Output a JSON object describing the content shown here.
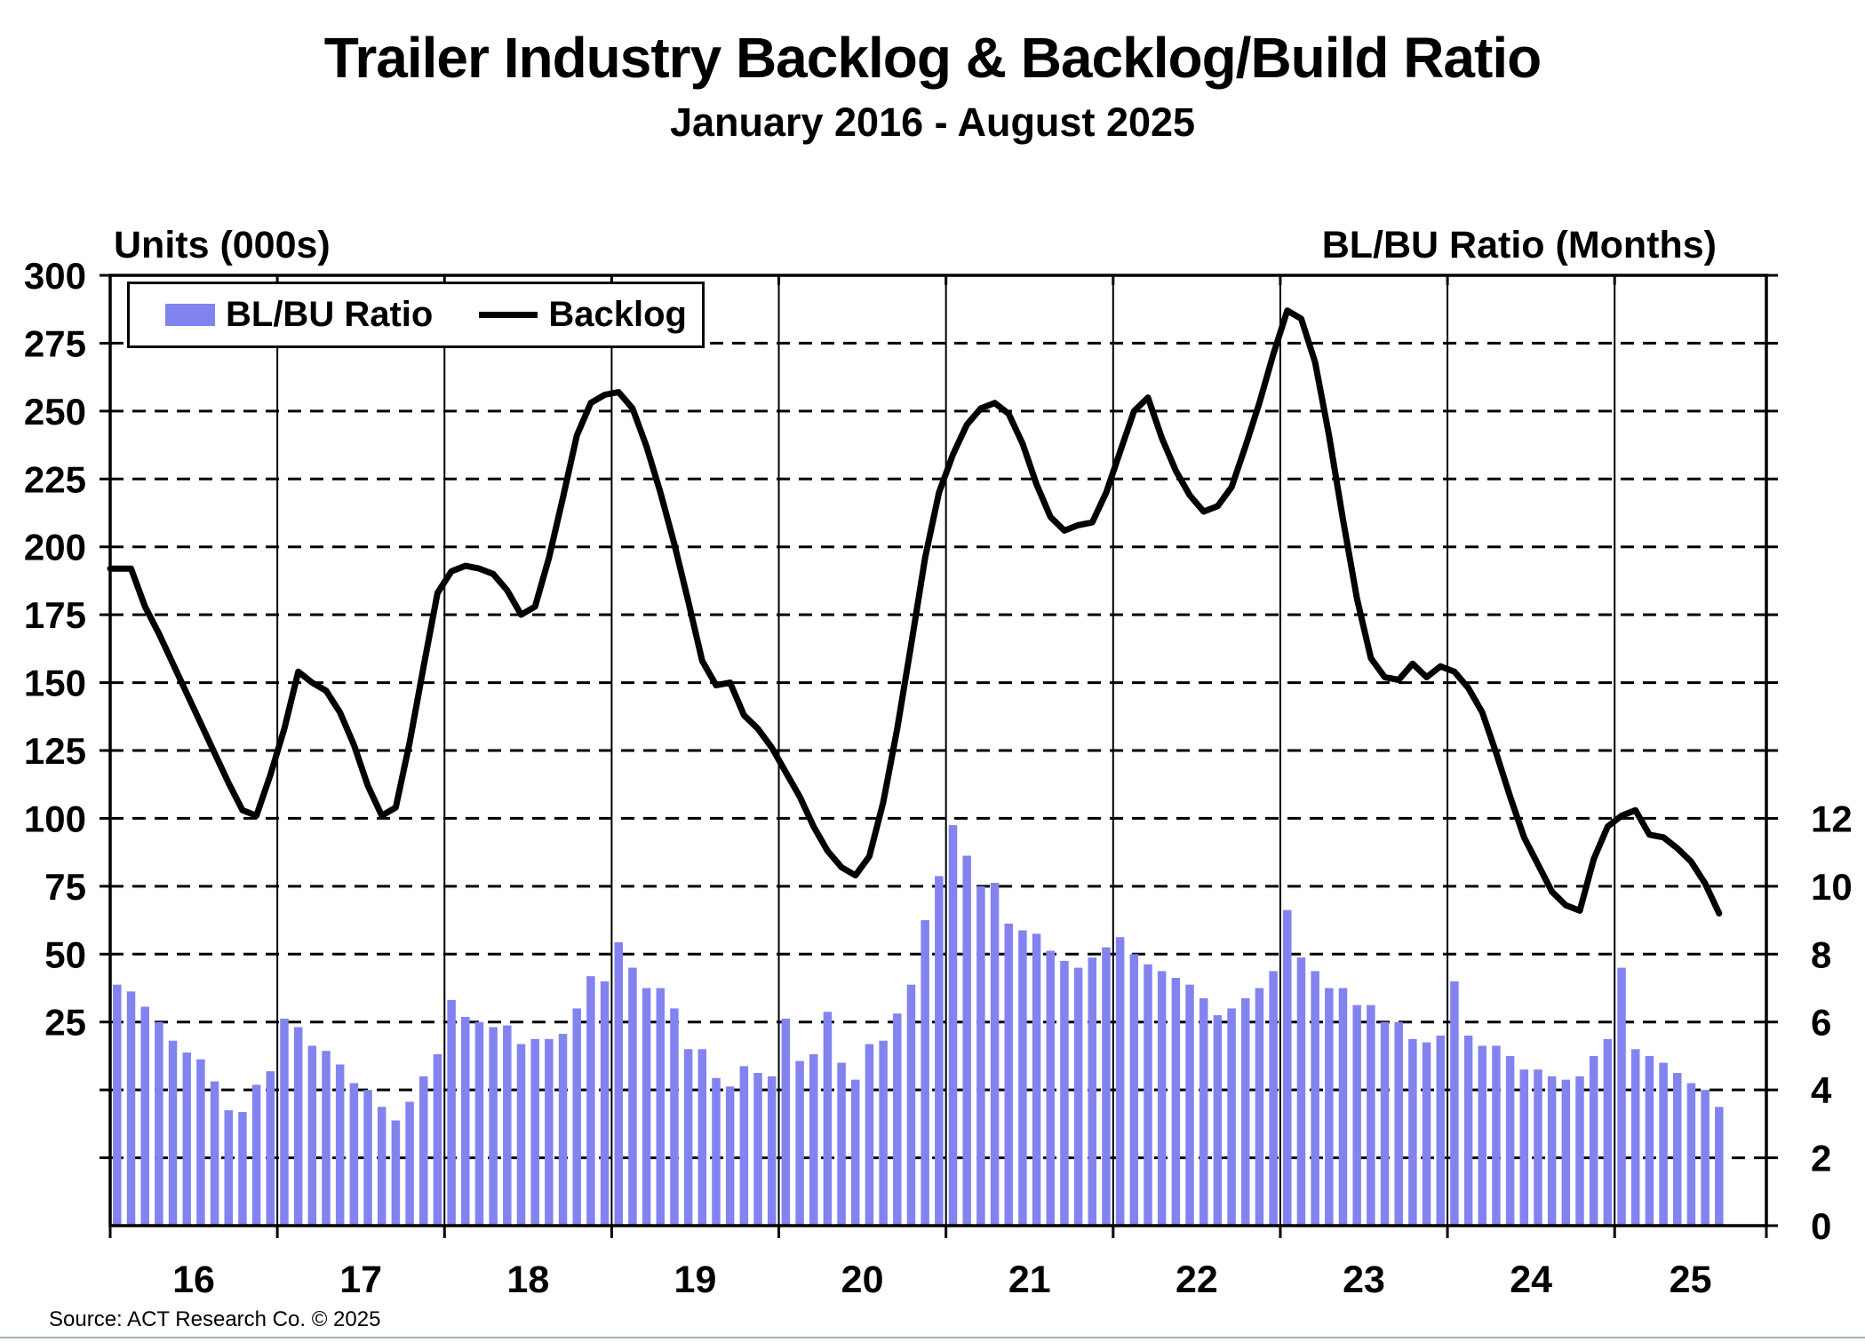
{
  "title": "Trailer Industry Backlog & Backlog/Build Ratio",
  "subtitle": "January 2016 - August 2025",
  "source": "Source: ACT Research Co. © 2025",
  "left_axis": {
    "title": "Units (000s)",
    "ticks": [
      300,
      275,
      250,
      225,
      200,
      175,
      150,
      125,
      100,
      75,
      50,
      25
    ]
  },
  "right_axis": {
    "title": "BL/BU Ratio (Months)",
    "ticks": [
      12,
      10,
      8,
      6,
      4,
      2,
      0
    ]
  },
  "x_axis": {
    "year_labels": [
      "16",
      "17",
      "18",
      "19",
      "20",
      "21",
      "22",
      "23",
      "24",
      "25"
    ]
  },
  "legend": {
    "items": [
      {
        "label": "BL/BU Ratio",
        "swatch": "bar"
      },
      {
        "label": "Backlog",
        "swatch": "line"
      }
    ]
  },
  "colors": {
    "bar": "#8383f0",
    "line": "#000000",
    "frame": "#000000",
    "grid": "#000000",
    "background": "#ffffff"
  },
  "chart_data": {
    "type": "bar",
    "title": "Trailer Industry Backlog & Backlog/Build Ratio",
    "x": {
      "start": "2016-01",
      "end": "2025-08",
      "interval": "month",
      "year_order": [
        "2016",
        "2017",
        "2018",
        "2019",
        "2020",
        "2021",
        "2022",
        "2023",
        "2024",
        "2025"
      ]
    },
    "left_axis_range": [
      -50,
      300
    ],
    "right_axis_range": [
      0,
      28
    ],
    "gridlines": "horizontal-dashed",
    "legend_position": "top-left",
    "series": [
      {
        "name": "BL/BU Ratio",
        "type": "bar",
        "axis": "right",
        "unit": "months",
        "values_by_year": {
          "2016": [
            7.1,
            6.9,
            6.45,
            6.0,
            5.45,
            5.1,
            4.9,
            4.25,
            3.4,
            3.35,
            4.15,
            4.55
          ],
          "2017": [
            6.1,
            5.85,
            5.3,
            5.15,
            4.75,
            4.2,
            4.0,
            3.5,
            3.1,
            3.65,
            4.4,
            5.05
          ],
          "2018": [
            6.65,
            6.15,
            6.0,
            5.85,
            5.9,
            5.35,
            5.5,
            5.5,
            5.65,
            6.4,
            7.35,
            7.2
          ],
          "2019": [
            8.35,
            7.6,
            7.0,
            7.0,
            6.4,
            5.2,
            5.2,
            4.35,
            4.1,
            4.7,
            4.5,
            4.4
          ],
          "2020": [
            6.1,
            4.85,
            5.05,
            6.3,
            4.8,
            4.3,
            5.35,
            5.45,
            6.25,
            7.1,
            9.0,
            10.3
          ],
          "2021": [
            11.8,
            10.9,
            10.0,
            10.1,
            8.9,
            8.7,
            8.6,
            8.1,
            7.8,
            7.6,
            7.9,
            8.2
          ],
          "2022": [
            8.5,
            8.0,
            7.7,
            7.5,
            7.3,
            7.1,
            6.7,
            6.2,
            6.4,
            6.7,
            7.0,
            7.5
          ],
          "2023": [
            9.3,
            7.9,
            7.5,
            7.0,
            7.0,
            6.5,
            6.5,
            6.0,
            6.0,
            5.5,
            5.4,
            5.6
          ],
          "2024": [
            7.2,
            5.6,
            5.3,
            5.3,
            5.0,
            4.6,
            4.6,
            4.4,
            4.3,
            4.4,
            5.0,
            5.5
          ],
          "2025": [
            7.6,
            5.2,
            5.0,
            4.8,
            4.5,
            4.2,
            4.0,
            3.5
          ]
        }
      },
      {
        "name": "Backlog",
        "type": "line",
        "axis": "left",
        "unit": "thousand units",
        "values_by_year": {
          "2016": [
            192,
            192,
            178,
            168,
            157,
            146,
            135,
            124,
            113,
            103,
            101,
            116
          ],
          "2017": [
            133,
            154,
            150,
            147,
            139,
            127,
            112,
            101,
            104,
            128,
            156,
            183
          ],
          "2018": [
            191,
            193,
            192,
            190,
            184,
            175,
            178,
            196,
            218,
            241,
            253,
            256
          ],
          "2019": [
            257,
            251,
            237,
            220,
            201,
            180,
            158,
            149,
            150,
            138,
            133,
            126
          ],
          "2020": [
            117,
            108,
            97,
            88,
            82,
            79,
            86,
            106,
            133,
            164,
            196,
            220
          ],
          "2021": [
            234,
            245,
            251,
            253,
            249,
            238,
            223,
            211,
            206,
            208,
            209,
            220
          ],
          "2022": [
            235,
            250,
            255,
            240,
            228,
            219,
            213,
            215,
            222,
            237,
            253,
            271
          ],
          "2023": [
            287,
            284,
            268,
            241,
            210,
            181,
            159,
            152,
            151,
            157,
            152,
            156
          ],
          "2024": [
            154,
            148,
            139,
            124,
            108,
            93,
            83,
            73,
            68,
            66,
            85,
            97
          ],
          "2025": [
            101,
            103,
            94,
            93,
            89,
            84,
            76,
            65
          ]
        }
      }
    ]
  }
}
